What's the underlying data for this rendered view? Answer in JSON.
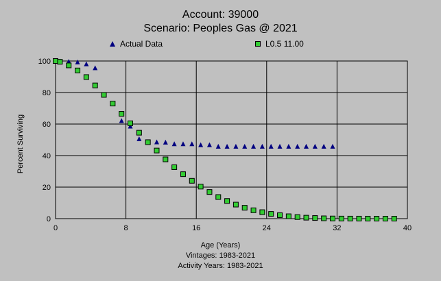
{
  "chart_data": {
    "type": "scatter",
    "title": "Account: 39000",
    "subtitle": "Scenario: Peoples Gas @ 2021",
    "xlabel": "Age (Years)",
    "ylabel": "Percent Surviving",
    "footer_lines": [
      "Vintages: 1983-2021",
      "Activity Years: 1983-2021"
    ],
    "xlim": [
      0,
      40
    ],
    "ylim": [
      0,
      100
    ],
    "x_ticks": [
      "0",
      "8",
      "16",
      "24",
      "32",
      "40"
    ],
    "y_ticks": [
      "0",
      "20",
      "40",
      "60",
      "80",
      "100"
    ],
    "grid": true,
    "legend_position": "top",
    "series": [
      {
        "name": "Actual Data",
        "marker": "triangle",
        "color": "#000080",
        "points": [
          [
            0,
            100
          ],
          [
            0.5,
            99.8
          ],
          [
            1.5,
            99.5
          ],
          [
            2.5,
            99.2
          ],
          [
            3.5,
            98
          ],
          [
            4.5,
            95.5
          ],
          [
            5.5,
            78.5
          ],
          [
            6.5,
            73
          ],
          [
            7.5,
            62
          ],
          [
            8.5,
            58.5
          ],
          [
            9.5,
            50.5
          ],
          [
            10.5,
            48.5
          ],
          [
            11.5,
            48.5
          ],
          [
            12.5,
            48.3
          ],
          [
            13.5,
            47.3
          ],
          [
            14.5,
            47.3
          ],
          [
            15.5,
            47.3
          ],
          [
            16.5,
            46.7
          ],
          [
            17.5,
            46.7
          ],
          [
            18.5,
            45.7
          ],
          [
            19.5,
            45.7
          ],
          [
            20.5,
            45.7
          ],
          [
            21.5,
            45.7
          ],
          [
            22.5,
            45.7
          ],
          [
            23.5,
            45.7
          ],
          [
            24.5,
            45.7
          ],
          [
            25.5,
            45.7
          ],
          [
            26.5,
            45.7
          ],
          [
            27.5,
            45.7
          ],
          [
            28.5,
            45.7
          ],
          [
            29.5,
            45.7
          ],
          [
            30.5,
            45.7
          ],
          [
            31.5,
            45.7
          ]
        ]
      },
      {
        "name": "L0.5 11.00",
        "marker": "square",
        "color": "#33cc33",
        "points": [
          [
            0,
            100
          ],
          [
            0.5,
            99.5
          ],
          [
            1.5,
            97.2
          ],
          [
            2.5,
            94
          ],
          [
            3.5,
            89.8
          ],
          [
            4.5,
            84.5
          ],
          [
            5.5,
            78.5
          ],
          [
            6.5,
            73
          ],
          [
            7.5,
            66.5
          ],
          [
            8.5,
            60.5
          ],
          [
            9.5,
            54.5
          ],
          [
            10.5,
            48.5
          ],
          [
            11.5,
            43.2
          ],
          [
            12.5,
            37.6
          ],
          [
            13.5,
            32.6
          ],
          [
            14.5,
            28.2
          ],
          [
            15.5,
            24
          ],
          [
            16.5,
            20.3
          ],
          [
            17.5,
            16.9
          ],
          [
            18.5,
            13.7
          ],
          [
            19.5,
            11.2
          ],
          [
            20.5,
            8.9
          ],
          [
            21.5,
            6.9
          ],
          [
            22.5,
            5.3
          ],
          [
            23.5,
            4.1
          ],
          [
            24.5,
            3
          ],
          [
            25.5,
            2.2
          ],
          [
            26.5,
            1.5
          ],
          [
            27.5,
            1
          ],
          [
            28.5,
            0.6
          ],
          [
            29.5,
            0.4
          ],
          [
            30.5,
            0.2
          ],
          [
            31.5,
            0.1
          ],
          [
            32.5,
            0.05
          ],
          [
            33.5,
            0.03
          ],
          [
            34.5,
            0.02
          ],
          [
            35.5,
            0.01
          ],
          [
            36.5,
            0
          ],
          [
            37.5,
            0
          ],
          [
            38.5,
            0
          ]
        ]
      }
    ]
  }
}
